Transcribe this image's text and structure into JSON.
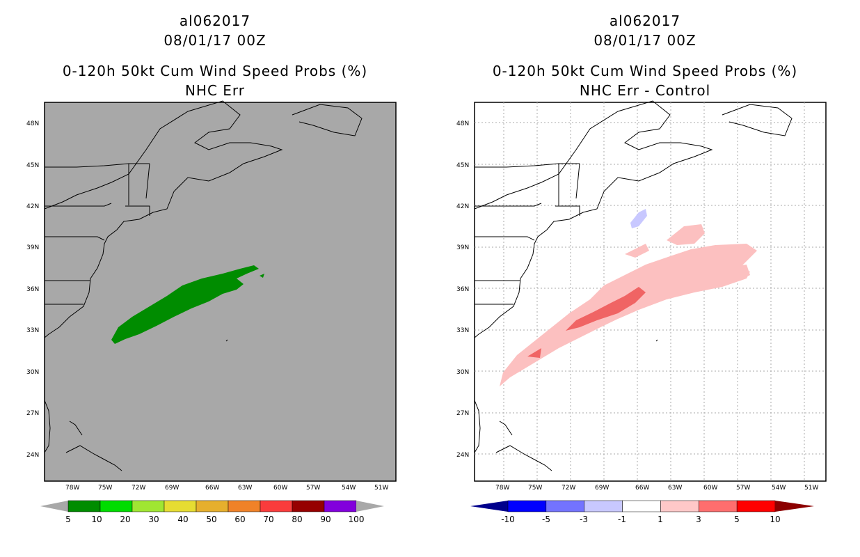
{
  "left_panel": {
    "storm_id": "al062017",
    "datetime": "08/01/17 00Z",
    "product": "0-120h 50kt Cum Wind Speed Probs (%)",
    "subtitle": "NHC Err",
    "lat_labels": [
      "48N",
      "45N",
      "42N",
      "39N",
      "36N",
      "33N",
      "30N",
      "27N",
      "24N"
    ],
    "lon_labels": [
      "78W",
      "75W",
      "72W",
      "69W",
      "66W",
      "63W",
      "60W",
      "57W",
      "54W",
      "51W"
    ],
    "colorbar": {
      "colors": [
        "#008c00",
        "#00dc00",
        "#a0e632",
        "#e6dc32",
        "#e6af2d",
        "#f08228",
        "#fa3c3c",
        "#960000",
        "#8200dc"
      ],
      "labels": [
        "5",
        "10",
        "20",
        "30",
        "40",
        "50",
        "60",
        "70",
        "80",
        "90",
        "100"
      ]
    },
    "background_color": "#a8a8a8",
    "prob_region_color": "#008c00"
  },
  "right_panel": {
    "storm_id": "al062017",
    "datetime": "08/01/17 00Z",
    "product": "0-120h 50kt Cum Wind Speed Probs (%)",
    "subtitle": "NHC Err - Control",
    "lat_labels": [
      "48N",
      "45N",
      "42N",
      "39N",
      "36N",
      "33N",
      "30N",
      "27N",
      "24N"
    ],
    "lon_labels": [
      "78W",
      "75W",
      "72W",
      "69W",
      "66W",
      "63W",
      "60W",
      "57W",
      "54W",
      "51W"
    ],
    "colorbar": {
      "colors": [
        "#00008c",
        "#0000ff",
        "#7373ff",
        "#c8c8ff",
        "#ffffff",
        "#ffc8c8",
        "#ff6e6e",
        "#ff0000",
        "#8c0000"
      ],
      "labels": [
        "-10",
        "-5",
        "-3",
        "-1",
        "1",
        "3",
        "5",
        "10"
      ]
    },
    "diff_colors": {
      "light_red": "#fcc0c0",
      "mid_red": "#f06464",
      "light_blue": "#c8c8ff"
    }
  }
}
